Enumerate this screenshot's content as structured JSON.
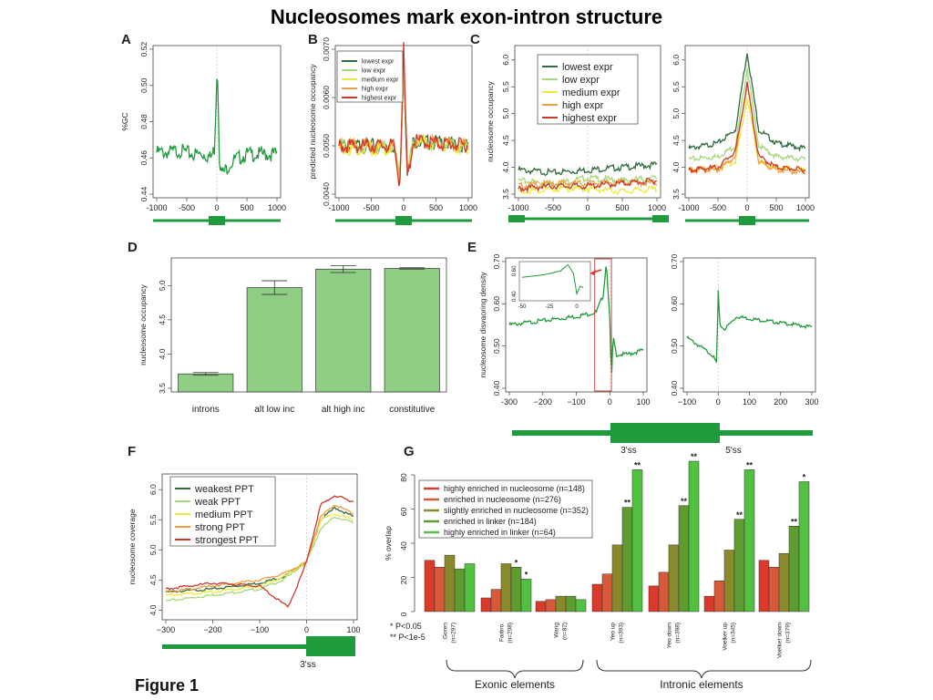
{
  "title": "Nucleosomes mark exon-intron structure",
  "figure_label": "Figure 1",
  "colors": {
    "green": "#1f9a3c",
    "dark_green": "#2f6b3a",
    "light_green": "#a7d87c",
    "yellow": "#eeea3a",
    "orange": "#eea040",
    "red": "#cc3a2e",
    "bar_green": "#8fce84",
    "g_red1": "#d93a2a",
    "g_red2": "#d65a3a",
    "g_olive": "#8a8a2c",
    "g_green": "#5e9c32",
    "g_bright": "#52c040"
  },
  "chart_data": [
    {
      "panel": "A",
      "type": "line",
      "xlabel": "",
      "ylabel": "%GC",
      "xlim": [
        -1000,
        1000
      ],
      "ylim": [
        0.44,
        0.52
      ],
      "xticks": [
        -1000,
        -500,
        0,
        500,
        1000
      ],
      "xtick_labels": [
        "-1000",
        "-500",
        "0",
        "500",
        "1000"
      ],
      "yticks": [
        0.44,
        0.46,
        0.48,
        0.5,
        0.52
      ],
      "ytick_labels": [
        "0.44",
        "0.46",
        "0.48",
        "0.50",
        "0.52"
      ],
      "grid": false,
      "series": [
        {
          "color": "green",
          "x": [
            -1000,
            -800,
            -600,
            -400,
            -200,
            -100,
            -40,
            0,
            10,
            25,
            40,
            70,
            120,
            200,
            300,
            500,
            700,
            1000
          ],
          "y": [
            0.463,
            0.463,
            0.464,
            0.462,
            0.462,
            0.46,
            0.465,
            0.506,
            0.51,
            0.49,
            0.462,
            0.452,
            0.452,
            0.456,
            0.459,
            0.462,
            0.462,
            0.462
          ]
        }
      ]
    },
    {
      "panel": "B",
      "type": "line",
      "xlabel": "",
      "ylabel": "predicted nucleosome occupancy",
      "xlim": [
        -1000,
        1000
      ],
      "ylim": [
        0.004,
        0.007
      ],
      "xticks": [
        -1000,
        -500,
        0,
        500,
        1000
      ],
      "xtick_labels": [
        "-1000",
        "-500",
        "0",
        "500",
        "1000"
      ],
      "yticks": [
        0.004,
        0.005,
        0.006,
        0.007
      ],
      "ytick_labels": [
        "0.0040",
        "0.0050",
        "0.0060",
        "0.0070"
      ],
      "legend": [
        "lowest expr",
        "low expr",
        "medium expr",
        "high expr",
        "highest expr"
      ],
      "legend_position": "top-left",
      "grid": false,
      "series": [
        {
          "name": "lowest expr",
          "color": "dark_green",
          "x": [
            -1000,
            -150,
            -60,
            0,
            60,
            150,
            1000
          ],
          "y": [
            0.005,
            0.005,
            0.0043,
            0.0066,
            0.0044,
            0.0051,
            0.005
          ]
        },
        {
          "name": "low expr",
          "color": "light_green",
          "x": [
            -1000,
            -150,
            -60,
            0,
            60,
            150,
            1000
          ],
          "y": [
            0.00498,
            0.00498,
            0.0043,
            0.0067,
            0.0044,
            0.0051,
            0.00498
          ]
        },
        {
          "name": "medium expr",
          "color": "yellow",
          "x": [
            -1000,
            -150,
            -60,
            0,
            60,
            150,
            1000
          ],
          "y": [
            0.00495,
            0.00495,
            0.0042,
            0.0068,
            0.0043,
            0.0051,
            0.00495
          ]
        },
        {
          "name": "high expr",
          "color": "orange",
          "x": [
            -1000,
            -150,
            -60,
            0,
            60,
            150,
            1000
          ],
          "y": [
            0.005,
            0.005,
            0.0042,
            0.0069,
            0.0043,
            0.0051,
            0.005
          ]
        },
        {
          "name": "highest expr",
          "color": "red",
          "x": [
            -1000,
            -150,
            -60,
            0,
            60,
            150,
            1000
          ],
          "y": [
            0.005,
            0.005,
            0.0042,
            0.007,
            0.0043,
            0.0051,
            0.005
          ]
        }
      ]
    },
    {
      "panel": "C-left",
      "type": "line",
      "xlabel": "",
      "ylabel": "nucleosome occupancy",
      "xlim": [
        -1000,
        1000
      ],
      "ylim": [
        3.5,
        6.2
      ],
      "xticks": [
        -1000,
        -500,
        0,
        500,
        1000
      ],
      "xtick_labels": [
        "-1000",
        "-500",
        "0",
        "500",
        "1000"
      ],
      "yticks": [
        3.5,
        4.0,
        4.5,
        5.0,
        5.5,
        6.0
      ],
      "ytick_labels": [
        "3.5",
        "4.0",
        "4.5",
        "5.0",
        "5.5",
        "6.0"
      ],
      "legend": [
        "lowest expr",
        "low expr",
        "medium expr",
        "high expr",
        "highest expr"
      ],
      "legend_position": "top-left",
      "grid": false,
      "series": [
        {
          "name": "lowest expr",
          "color": "dark_green",
          "x": [
            -1000,
            -500,
            0,
            500,
            1000
          ],
          "y": [
            3.95,
            3.9,
            3.95,
            4.0,
            4.05
          ]
        },
        {
          "name": "low expr",
          "color": "light_green",
          "x": [
            -1000,
            -500,
            0,
            500,
            1000
          ],
          "y": [
            3.75,
            3.7,
            3.8,
            3.75,
            3.8
          ]
        },
        {
          "name": "medium expr",
          "color": "yellow",
          "x": [
            -1000,
            -500,
            0,
            500,
            1000
          ],
          "y": [
            3.55,
            3.6,
            3.6,
            3.55,
            3.6
          ]
        },
        {
          "name": "high expr",
          "color": "orange",
          "x": [
            -1000,
            -500,
            0,
            500,
            1000
          ],
          "y": [
            3.65,
            3.7,
            3.7,
            3.72,
            3.7
          ]
        },
        {
          "name": "highest expr",
          "color": "red",
          "x": [
            -1000,
            -500,
            0,
            500,
            1000
          ],
          "y": [
            3.6,
            3.65,
            3.65,
            3.7,
            3.75
          ]
        }
      ]
    },
    {
      "panel": "C-right",
      "type": "line",
      "xlabel": "",
      "ylabel": "",
      "xlim": [
        -1000,
        1000
      ],
      "ylim": [
        3.5,
        6.2
      ],
      "xticks": [
        -1000,
        -500,
        0,
        500,
        1000
      ],
      "xtick_labels": [
        "-1000",
        "-500",
        "0",
        "500",
        "1000"
      ],
      "yticks": [
        3.5,
        4.0,
        4.5,
        5.0,
        5.5,
        6.0
      ],
      "ytick_labels": [
        "3.5",
        "4.0",
        "4.5",
        "5.0",
        "5.5",
        "6.0"
      ],
      "grid": false,
      "series": [
        {
          "name": "lowest expr",
          "color": "dark_green",
          "x": [
            -1000,
            -500,
            -200,
            0,
            200,
            500,
            1000
          ],
          "y": [
            4.35,
            4.45,
            4.7,
            6.15,
            4.7,
            4.45,
            4.35
          ]
        },
        {
          "name": "low expr",
          "color": "light_green",
          "x": [
            -1000,
            -500,
            -200,
            0,
            200,
            500,
            1000
          ],
          "y": [
            4.15,
            4.2,
            4.4,
            5.85,
            4.4,
            4.2,
            4.15
          ]
        },
        {
          "name": "medium expr",
          "color": "yellow",
          "x": [
            -1000,
            -500,
            -200,
            0,
            200,
            500,
            1000
          ],
          "y": [
            3.95,
            4.0,
            4.1,
            5.3,
            4.1,
            4.0,
            3.95
          ]
        },
        {
          "name": "high expr",
          "color": "orange",
          "x": [
            -1000,
            -500,
            -200,
            0,
            200,
            500,
            1000
          ],
          "y": [
            3.95,
            3.95,
            4.2,
            5.6,
            4.1,
            3.95,
            3.9
          ]
        },
        {
          "name": "highest expr",
          "color": "red",
          "x": [
            -1000,
            -500,
            -200,
            0,
            200,
            500,
            1000
          ],
          "y": [
            3.95,
            4.0,
            4.3,
            5.55,
            4.2,
            4.0,
            3.95
          ]
        }
      ]
    },
    {
      "panel": "D",
      "type": "bar",
      "categories": [
        "introns",
        "alt low inc",
        "alt high inc",
        "constitutive"
      ],
      "values": [
        3.71,
        4.97,
        5.24,
        5.25
      ],
      "errors": [
        0.02,
        0.1,
        0.05,
        0.01
      ],
      "xlabel": "",
      "ylabel": "nucleosome occupancy",
      "ylim": [
        3.5,
        5.35
      ],
      "yticks": [
        3.5,
        4.0,
        4.5,
        5.0
      ],
      "ytick_labels": [
        "3.5",
        "4.0",
        "4.5",
        "5.0"
      ],
      "grid": false
    },
    {
      "panel": "E-left",
      "type": "line",
      "xlabel": "",
      "ylabel": "nucleosome disvaoring density",
      "xlim": [
        -300,
        100
      ],
      "ylim": [
        0.4,
        0.7
      ],
      "xticks": [
        -300,
        -200,
        -100,
        0,
        100
      ],
      "xtick_labels": [
        "-300",
        "−200",
        "−100",
        "0",
        "100"
      ],
      "yticks": [
        0.4,
        0.5,
        0.6,
        0.7
      ],
      "ytick_labels": [
        "0.40",
        "0.50",
        "0.60",
        "0.70"
      ],
      "grid": false,
      "series": [
        {
          "color": "green",
          "x": [
            -300,
            -200,
            -100,
            -40,
            -20,
            -10,
            0,
            5,
            10,
            20,
            50,
            100
          ],
          "y": [
            0.55,
            0.56,
            0.57,
            0.58,
            0.62,
            0.7,
            0.56,
            0.42,
            0.52,
            0.48,
            0.48,
            0.49
          ]
        }
      ],
      "inset": {
        "xlim": [
          -50,
          10
        ],
        "ylim": [
          0.38,
          0.66
        ],
        "xticks": [
          -50,
          -25,
          0
        ],
        "xtick_labels": [
          "-50",
          "-25",
          "0"
        ],
        "yticks": [
          0.4,
          0.6
        ],
        "ytick_labels": [
          "0.40",
          "0.60"
        ],
        "x": [
          -50,
          -30,
          -15,
          -8,
          -3,
          0,
          3,
          6
        ],
        "y": [
          0.55,
          0.57,
          0.6,
          0.65,
          0.58,
          0.42,
          0.48,
          0.47
        ]
      }
    },
    {
      "panel": "E-right",
      "type": "line",
      "xlabel": "",
      "ylabel": "",
      "xlim": [
        -100,
        300
      ],
      "ylim": [
        0.4,
        0.7
      ],
      "xticks": [
        -100,
        0,
        100,
        200,
        300
      ],
      "xtick_labels": [
        "−100",
        "0",
        "100",
        "200",
        "300"
      ],
      "yticks": [
        0.4,
        0.5,
        0.6,
        0.7
      ],
      "ytick_labels": [
        "0.40",
        "0.50",
        "0.60",
        "0.70"
      ],
      "grid": false,
      "series": [
        {
          "color": "green",
          "x": [
            -100,
            -60,
            -20,
            -5,
            0,
            5,
            20,
            60,
            100,
            200,
            300
          ],
          "y": [
            0.52,
            0.5,
            0.48,
            0.46,
            0.63,
            0.55,
            0.54,
            0.57,
            0.565,
            0.555,
            0.545
          ]
        }
      ]
    },
    {
      "panel": "F",
      "type": "line",
      "xlabel": "",
      "ylabel": "nucleosome coverage",
      "xlim": [
        -300,
        100
      ],
      "ylim": [
        3.9,
        6.2
      ],
      "xticks": [
        -300,
        -200,
        -100,
        0,
        100
      ],
      "xtick_labels": [
        "−300",
        "−200",
        "−100",
        "0",
        "100"
      ],
      "yticks": [
        4.0,
        4.5,
        5.0,
        5.5,
        6.0
      ],
      "ytick_labels": [
        "4.0",
        "4.5",
        "5.0",
        "5.5",
        "6.0"
      ],
      "legend": [
        "weakest PPT",
        "weak PPT",
        "medium PPT",
        "strong PPT",
        "strongest PPT"
      ],
      "legend_position": "top-left",
      "grid": false,
      "series": [
        {
          "name": "weakest PPT",
          "color": "dark_green",
          "x": [
            -300,
            -200,
            -100,
            -50,
            0,
            30,
            60,
            100
          ],
          "y": [
            4.3,
            4.35,
            4.45,
            4.55,
            4.8,
            5.5,
            5.7,
            5.55
          ]
        },
        {
          "name": "weak PPT",
          "color": "light_green",
          "x": [
            -300,
            -200,
            -100,
            -50,
            0,
            30,
            60,
            100
          ],
          "y": [
            4.15,
            4.25,
            4.35,
            4.5,
            4.8,
            5.35,
            5.55,
            5.45
          ]
        },
        {
          "name": "medium PPT",
          "color": "yellow",
          "x": [
            -300,
            -200,
            -100,
            -50,
            0,
            30,
            60,
            100
          ],
          "y": [
            4.25,
            4.3,
            4.4,
            4.55,
            4.8,
            5.5,
            5.6,
            5.5
          ]
        },
        {
          "name": "strong PPT",
          "color": "orange",
          "x": [
            -300,
            -200,
            -100,
            -50,
            0,
            30,
            60,
            100
          ],
          "y": [
            4.3,
            4.4,
            4.5,
            4.6,
            4.8,
            5.55,
            5.75,
            5.6
          ]
        },
        {
          "name": "strongest PPT",
          "color": "red",
          "x": [
            -300,
            -200,
            -100,
            -40,
            -20,
            0,
            30,
            60,
            100
          ],
          "y": [
            4.35,
            4.45,
            4.4,
            4.05,
            4.4,
            4.8,
            5.75,
            5.9,
            5.8
          ]
        }
      ]
    },
    {
      "panel": "G",
      "type": "bar",
      "categories": [
        "Goren\n(n=297)",
        "Farbro.\n(n=208)",
        "Wang\n(n=82)",
        "Yeo up\n(n=393)",
        "Yeo down\n(n=398)",
        "Voelker up\n(n=345)",
        "Voelker down\n(n=379)"
      ],
      "series": [
        {
          "name": "highly enriched in nucleosome (n=148)",
          "color": "g_red1",
          "values": [
            30,
            8,
            6,
            16,
            15,
            9,
            30
          ]
        },
        {
          "name": "enriched in nucleosome (n=276)",
          "color": "g_red2",
          "values": [
            26,
            13,
            7,
            22,
            23,
            18,
            26
          ]
        },
        {
          "name": "slightly enriched in nucleosome (n=352)",
          "color": "g_olive",
          "values": [
            33,
            28,
            9,
            39,
            39,
            36,
            34
          ]
        },
        {
          "name": "enriched in linker (n=184)",
          "color": "g_green",
          "values": [
            25,
            26,
            9,
            61,
            62,
            54,
            50
          ]
        },
        {
          "name": "highly enriched in linker (n=64)",
          "color": "g_bright",
          "values": [
            28,
            19,
            7,
            83,
            88,
            83,
            76
          ]
        }
      ],
      "significance": [
        {
          "group": 1,
          "bar": 3,
          "mark": "*"
        },
        {
          "group": 1,
          "bar": 4,
          "mark": "*"
        },
        {
          "group": 3,
          "bar": 3,
          "mark": "**"
        },
        {
          "group": 3,
          "bar": 4,
          "mark": "**"
        },
        {
          "group": 4,
          "bar": 3,
          "mark": "**"
        },
        {
          "group": 4,
          "bar": 4,
          "mark": "**"
        },
        {
          "group": 5,
          "bar": 3,
          "mark": "**"
        },
        {
          "group": 5,
          "bar": 4,
          "mark": "**"
        },
        {
          "group": 6,
          "bar": 3,
          "mark": "**"
        },
        {
          "group": 6,
          "bar": 4,
          "mark": "*"
        }
      ],
      "xlabel": "",
      "ylabel": "% overlap",
      "ylim": [
        0,
        88
      ],
      "yticks": [
        0,
        20,
        40,
        60,
        80
      ],
      "ytick_labels": [
        "0",
        "20",
        "40",
        "60",
        "80"
      ],
      "legend_position": "top-left",
      "footnote": [
        "*   P<0.05",
        "**  P<1e-5"
      ],
      "bracket_labels": [
        "Exonic elements",
        "Intronic elements"
      ],
      "grid": false
    }
  ],
  "panel_labels": [
    "A",
    "B",
    "C",
    "D",
    "E",
    "F",
    "G"
  ],
  "ss_labels": {
    "e_left": "3'ss",
    "e_right": "5'ss",
    "f": "3'ss"
  }
}
